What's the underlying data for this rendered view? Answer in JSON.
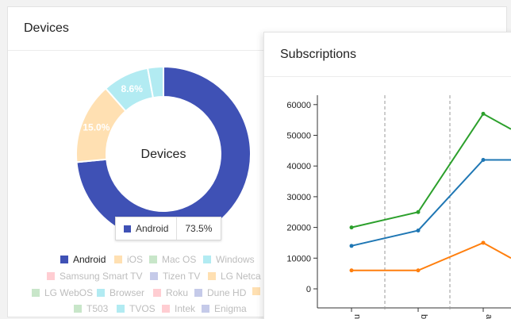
{
  "devices_panel": {
    "title": "Devices",
    "center_label": "Devices",
    "tooltip": {
      "label": "Android",
      "value": "73.5%",
      "color": "#3f51b5"
    },
    "slices": [
      {
        "name": "Android",
        "percent": 73.5,
        "label": "",
        "color": "#3f51b5"
      },
      {
        "name": "iOS",
        "percent": 15.0,
        "label": "15.0%",
        "color": "#ffe0b2"
      },
      {
        "name": "Mac OS",
        "percent": 8.6,
        "label": "8.6%",
        "color": "#b2ebf2"
      },
      {
        "name": "Windows",
        "percent": 2.9,
        "label": "",
        "color": "#b2ebf2"
      }
    ],
    "legend": [
      {
        "label": "Android",
        "color": "#3f51b5",
        "active": true
      },
      {
        "label": "iOS",
        "color": "#ffe0b2",
        "active": false
      },
      {
        "label": "Mac OS",
        "color": "#c8e6c9",
        "active": false
      },
      {
        "label": "Windows",
        "color": "#b2ebf2",
        "active": false
      },
      {
        "label": "Samsung Smart TV",
        "color": "#ffcdd2",
        "active": false
      },
      {
        "label": "Tizen TV",
        "color": "#c5cae9",
        "active": false
      },
      {
        "label": "LG Netca",
        "color": "#ffe0b2",
        "active": false
      },
      {
        "label": "LG WebOS",
        "color": "#c8e6c9",
        "active": false
      },
      {
        "label": "Browser",
        "color": "#b2ebf2",
        "active": false
      },
      {
        "label": "Roku",
        "color": "#ffcdd2",
        "active": false
      },
      {
        "label": "Dune HD",
        "color": "#c5cae9",
        "active": false
      },
      {
        "label": "",
        "color": "#ffe0b2",
        "active": false
      },
      {
        "label": "T503",
        "color": "#c8e6c9",
        "active": false
      },
      {
        "label": "TVOS",
        "color": "#b2ebf2",
        "active": false
      },
      {
        "label": "Intek",
        "color": "#ffcdd2",
        "active": false
      },
      {
        "label": "Enigma",
        "color": "#c5cae9",
        "active": false
      }
    ]
  },
  "subscriptions_panel": {
    "title": "Subscriptions"
  },
  "chart_data": {
    "type": "line",
    "ylim": [
      0,
      60000
    ],
    "yticks": [
      0,
      10000,
      20000,
      30000,
      40000,
      50000,
      60000
    ],
    "x_tick_labels": [
      "n",
      "b",
      "ar"
    ],
    "grid": "vertical dashed",
    "series": [
      {
        "color": "#2ca02c",
        "values": [
          20000,
          25000,
          57000,
          52000
        ]
      },
      {
        "color": "#1f77b4",
        "values": [
          14000,
          19000,
          42000,
          42000
        ]
      },
      {
        "color": "#ff7f0e",
        "values": [
          6000,
          6000,
          15000,
          10000
        ]
      }
    ]
  }
}
